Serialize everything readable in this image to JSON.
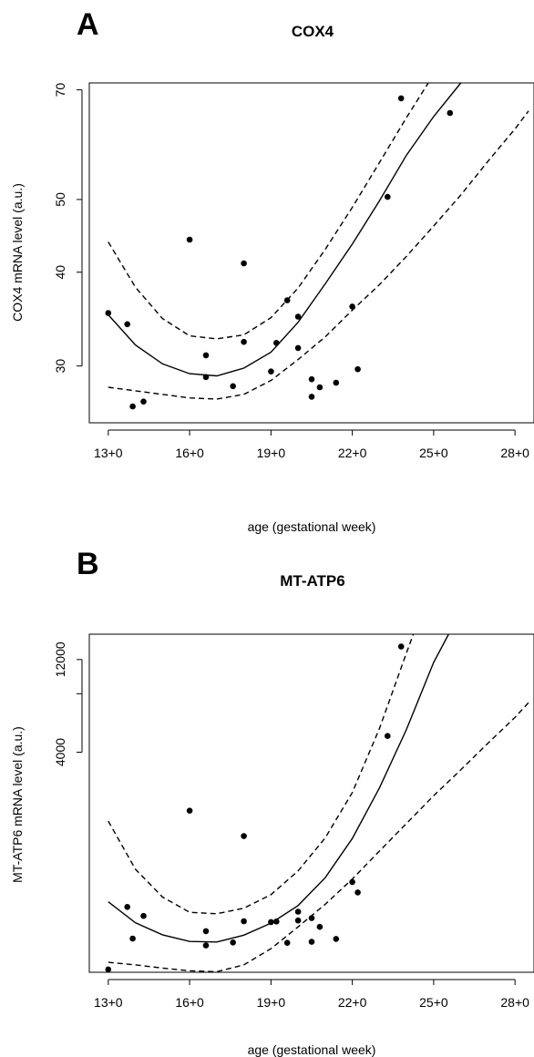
{
  "chart_data": [
    {
      "type": "scatter",
      "panel_label": "A",
      "title": "COX4",
      "xlabel": "age (gestational week)",
      "ylabel": "COX4 mRNA level (a.u.)",
      "yscale": "log",
      "xlim": [
        12.3,
        28.7
      ],
      "ylim": [
        25.2,
        71.5
      ],
      "x_ticks": [
        13,
        16,
        19,
        22,
        25,
        28
      ],
      "x_tick_labels": [
        "13+0",
        "16+0",
        "19+0",
        "22+0",
        "25+0",
        "28+0"
      ],
      "y_ticks": [
        30,
        40,
        50,
        70
      ],
      "y_tick_labels": [
        "30",
        "40",
        "50",
        "70"
      ],
      "points": [
        {
          "x": 13.0,
          "y": 35.3
        },
        {
          "x": 13.7,
          "y": 34.1
        },
        {
          "x": 13.9,
          "y": 26.5
        },
        {
          "x": 14.3,
          "y": 26.9
        },
        {
          "x": 16.0,
          "y": 44.2
        },
        {
          "x": 16.6,
          "y": 31.0
        },
        {
          "x": 16.6,
          "y": 29.0
        },
        {
          "x": 17.6,
          "y": 28.2
        },
        {
          "x": 18.0,
          "y": 41.1
        },
        {
          "x": 18.0,
          "y": 32.3
        },
        {
          "x": 19.0,
          "y": 29.5
        },
        {
          "x": 19.2,
          "y": 32.2
        },
        {
          "x": 19.6,
          "y": 36.7
        },
        {
          "x": 20.0,
          "y": 34.9
        },
        {
          "x": 20.0,
          "y": 31.7
        },
        {
          "x": 20.5,
          "y": 28.8
        },
        {
          "x": 20.5,
          "y": 27.3
        },
        {
          "x": 20.8,
          "y": 28.1
        },
        {
          "x": 21.4,
          "y": 28.5
        },
        {
          "x": 22.0,
          "y": 36.0
        },
        {
          "x": 22.2,
          "y": 29.7
        },
        {
          "x": 23.3,
          "y": 50.4
        },
        {
          "x": 23.8,
          "y": 68.2
        },
        {
          "x": 25.6,
          "y": 65.2
        }
      ],
      "curves": [
        {
          "name": "",
          "dash": "solid",
          "points": [
            [
              13,
              35.1
            ],
            [
              14,
              32.0
            ],
            [
              15,
              30.2
            ],
            [
              16,
              29.3
            ],
            [
              17,
              29.1
            ],
            [
              18,
              29.8
            ],
            [
              19,
              31.3
            ],
            [
              20,
              34.3
            ],
            [
              21,
              38.6
            ],
            [
              22,
              43.6
            ],
            [
              23,
              49.8
            ],
            [
              24,
              57.3
            ],
            [
              25,
              64.5
            ],
            [
              26,
              71.5
            ]
          ]
        },
        {
          "name": "",
          "dash": "dashed",
          "points": [
            [
              13,
              43.9
            ],
            [
              14,
              38.2
            ],
            [
              15,
              34.7
            ],
            [
              16,
              32.9
            ],
            [
              17,
              32.6
            ],
            [
              18,
              33.0
            ],
            [
              19,
              34.8
            ],
            [
              20,
              38.1
            ],
            [
              21,
              42.9
            ],
            [
              22,
              48.8
            ],
            [
              23,
              56.0
            ],
            [
              24,
              64.3
            ],
            [
              24.8,
              71.5
            ]
          ]
        },
        {
          "name": "",
          "dash": "dashed",
          "points": [
            [
              13,
              28.1
            ],
            [
              14,
              27.8
            ],
            [
              15,
              27.5
            ],
            [
              16,
              27.2
            ],
            [
              17,
              27.1
            ],
            [
              18,
              27.5
            ],
            [
              19,
              28.7
            ],
            [
              20,
              30.6
            ],
            [
              21,
              32.8
            ],
            [
              22,
              35.6
            ],
            [
              23,
              38.5
            ],
            [
              24,
              42.0
            ],
            [
              25,
              46.1
            ],
            [
              26,
              50.7
            ],
            [
              27,
              56.2
            ],
            [
              28,
              62.1
            ],
            [
              28.5,
              65.6
            ]
          ]
        }
      ]
    },
    {
      "type": "scatter",
      "panel_label": "B",
      "title": "MT-ATP6",
      "xlabel": "age (gestational week)",
      "ylabel": "MT-ATP6 mRNA level (a.u.)",
      "yscale": "log",
      "xlim": [
        12.3,
        28.7
      ],
      "ylim": [
        295,
        16200
      ],
      "x_ticks": [
        13,
        16,
        19,
        22,
        25,
        28
      ],
      "x_tick_labels": [
        "13+0",
        "16+0",
        "19+0",
        "22+0",
        "25+0",
        "28+0"
      ],
      "y_ticks": [
        4000,
        8000,
        12000
      ],
      "y_tick_labels": [
        "4000",
        "",
        "12000"
      ],
      "points": [
        {
          "x": 13.0,
          "y": 305
        },
        {
          "x": 13.7,
          "y": 640
        },
        {
          "x": 13.9,
          "y": 440
        },
        {
          "x": 14.3,
          "y": 575
        },
        {
          "x": 16.0,
          "y": 2000
        },
        {
          "x": 16.6,
          "y": 480
        },
        {
          "x": 16.6,
          "y": 405
        },
        {
          "x": 17.6,
          "y": 420
        },
        {
          "x": 18.0,
          "y": 1480
        },
        {
          "x": 18.0,
          "y": 540
        },
        {
          "x": 19.0,
          "y": 535
        },
        {
          "x": 19.2,
          "y": 538
        },
        {
          "x": 19.6,
          "y": 418
        },
        {
          "x": 20.0,
          "y": 605
        },
        {
          "x": 20.0,
          "y": 545
        },
        {
          "x": 20.5,
          "y": 560
        },
        {
          "x": 20.5,
          "y": 423
        },
        {
          "x": 20.8,
          "y": 505
        },
        {
          "x": 21.4,
          "y": 438
        },
        {
          "x": 22.0,
          "y": 860
        },
        {
          "x": 22.2,
          "y": 760
        },
        {
          "x": 23.3,
          "y": 4850
        },
        {
          "x": 23.8,
          "y": 14000
        }
      ],
      "curves": [
        {
          "name": "",
          "dash": "solid",
          "points": [
            [
              13,
              680
            ],
            [
              14,
              530
            ],
            [
              15,
              460
            ],
            [
              16,
              425
            ],
            [
              17,
              422
            ],
            [
              18,
              458
            ],
            [
              19,
              528
            ],
            [
              20,
              650
            ],
            [
              21,
              905
            ],
            [
              22,
              1440
            ],
            [
              23,
              2620
            ],
            [
              24,
              5250
            ],
            [
              25,
              11600
            ],
            [
              25.55,
              16200
            ]
          ]
        },
        {
          "name": "",
          "dash": "dashed",
          "points": [
            [
              13,
              1770
            ],
            [
              14,
              1000
            ],
            [
              15,
              720
            ],
            [
              16,
              600
            ],
            [
              17,
              590
            ],
            [
              18,
              630
            ],
            [
              19,
              740
            ],
            [
              20,
              980
            ],
            [
              21,
              1450
            ],
            [
              22,
              2480
            ],
            [
              23,
              5300
            ],
            [
              24,
              13000
            ],
            [
              24.25,
              16200
            ]
          ]
        },
        {
          "name": "",
          "dash": "dashed",
          "points": [
            [
              13,
              332
            ],
            [
              14,
              322
            ],
            [
              15,
              310
            ],
            [
              16,
              300
            ],
            [
              17,
              297
            ],
            [
              18,
              322
            ],
            [
              19,
              390
            ],
            [
              20,
              505
            ],
            [
              21,
              660
            ],
            [
              22,
              890
            ],
            [
              23,
              1240
            ],
            [
              24,
              1720
            ],
            [
              25,
              2390
            ],
            [
              26,
              3250
            ],
            [
              27,
              4450
            ],
            [
              28,
              6050
            ],
            [
              28.5,
              7200
            ]
          ]
        }
      ]
    }
  ]
}
